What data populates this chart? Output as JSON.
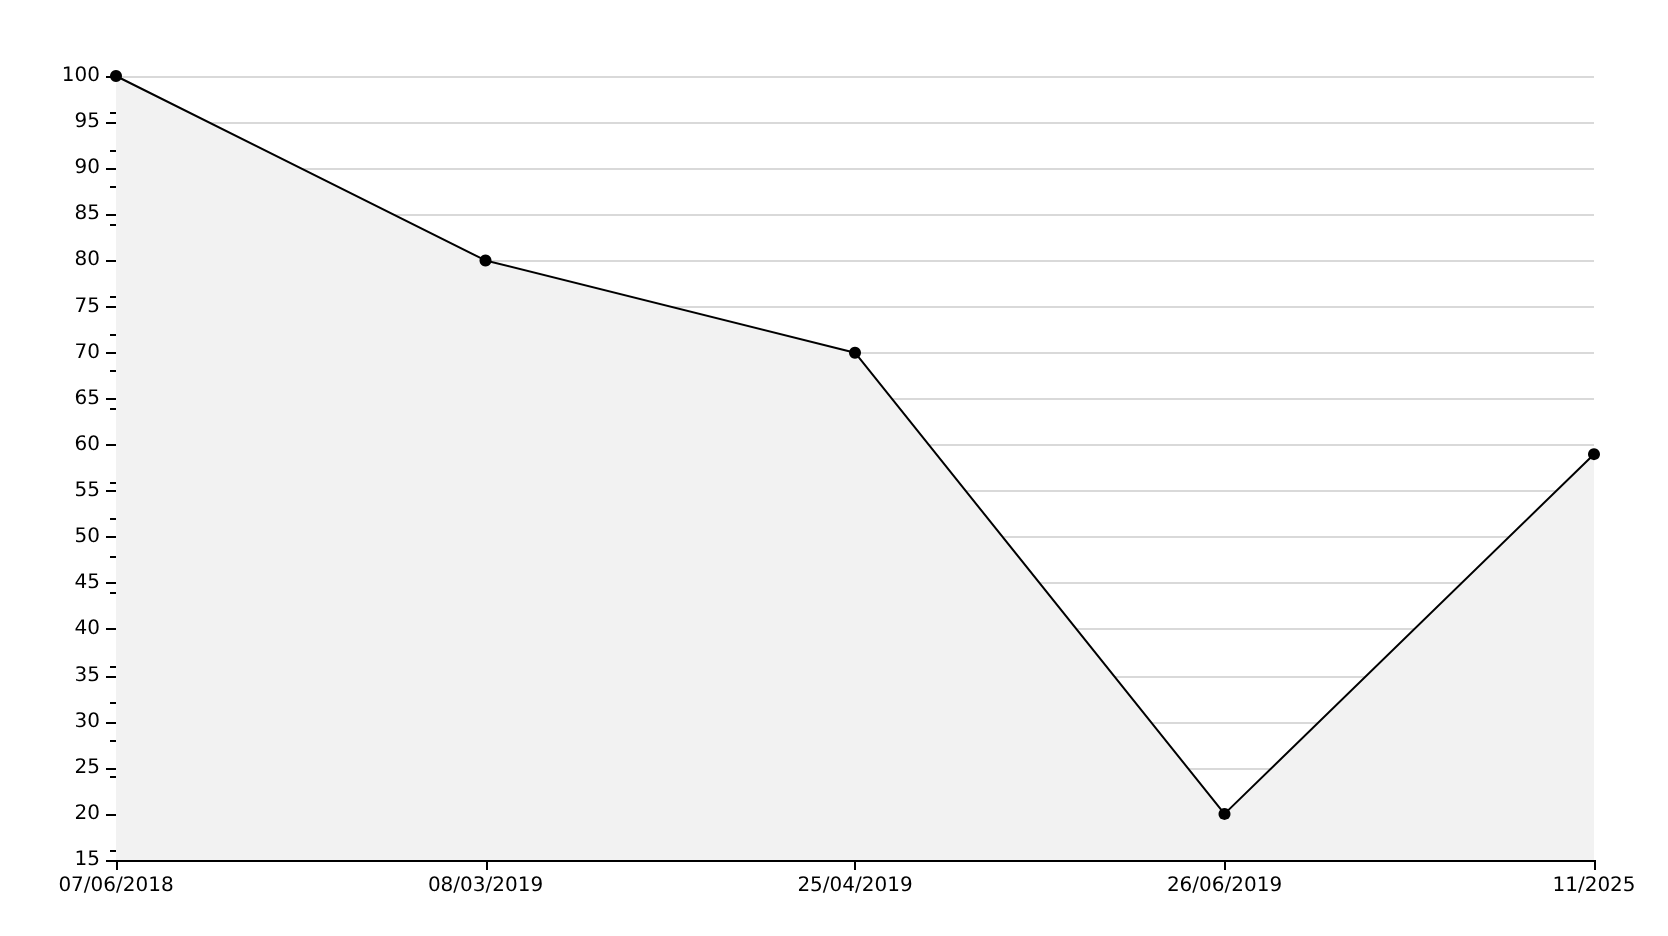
{
  "chart_data": {
    "type": "area",
    "categories": [
      "07/06/2018",
      "08/03/2019",
      "25/04/2019",
      "26/06/2019",
      "11/2025"
    ],
    "series": [
      {
        "color": "#000000",
        "values": [
          100,
          80,
          70,
          20,
          59
        ]
      }
    ],
    "ylim": [
      15,
      100
    ],
    "yticks": [
      15,
      20,
      25,
      30,
      35,
      40,
      45,
      50,
      55,
      60,
      65,
      70,
      75,
      80,
      85,
      90,
      95,
      100
    ],
    "grid": "y",
    "marker": "circle",
    "line_style": "solid"
  }
}
